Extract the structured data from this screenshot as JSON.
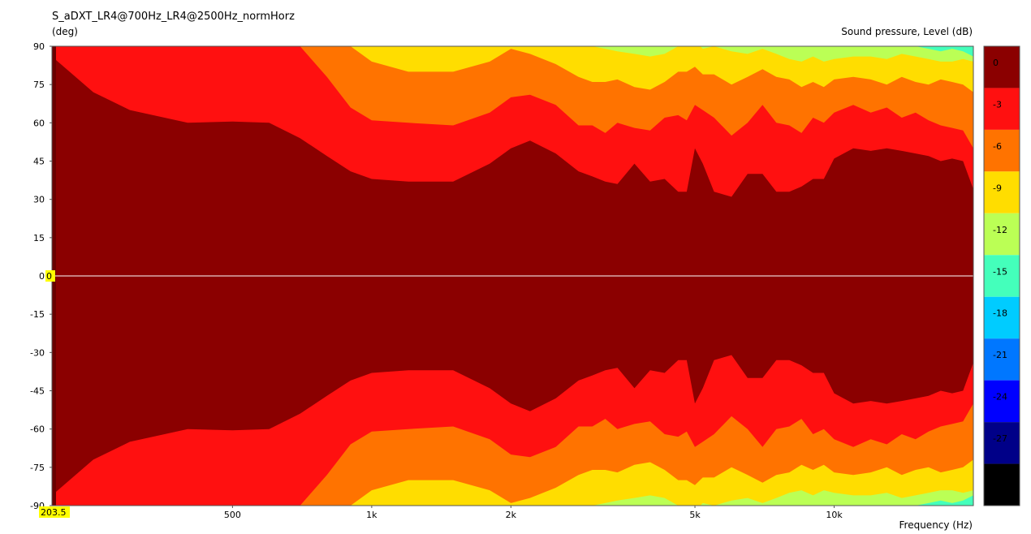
{
  "chart_data": {
    "type": "heatmap",
    "title": "S_aDXT_LR4@700Hz_LR4@2500Hz_normHorz",
    "ylabel": "(deg)",
    "xlabel": "Frequency  (Hz)",
    "colorbar_label": "Sound pressure, Level  (dB)",
    "x_scale": "log",
    "xlim": [
      203.5,
      20000
    ],
    "ylim": [
      -90,
      90
    ],
    "grid": false,
    "y_ticks": [
      90,
      75,
      60,
      45,
      30,
      15,
      0,
      -15,
      -30,
      -45,
      -60,
      -75,
      -90
    ],
    "x_ticks": [
      {
        "value": 500,
        "label": "500"
      },
      {
        "value": 1000,
        "label": "1k"
      },
      {
        "value": 2000,
        "label": "2k"
      },
      {
        "value": 5000,
        "label": "5k"
      },
      {
        "value": 10000,
        "label": "10k"
      }
    ],
    "cursor": {
      "x_label": "203.5",
      "y_label": "0"
    },
    "levels": [
      {
        "label": "0",
        "color": "#8b0000"
      },
      {
        "label": "-3",
        "color": "#ff1010"
      },
      {
        "label": "-6",
        "color": "#ff7300"
      },
      {
        "label": "-9",
        "color": "#ffdd00"
      },
      {
        "label": "-12",
        "color": "#bbff55"
      },
      {
        "label": "-15",
        "color": "#44ffbb"
      },
      {
        "label": "-18",
        "color": "#00ccff"
      },
      {
        "label": "-21",
        "color": "#0077ff"
      },
      {
        "label": "-24",
        "color": "#0000ff"
      },
      {
        "label": "-27",
        "color": "#000088"
      },
      {
        "label": "-30",
        "color": "#000000"
      }
    ],
    "contours": {
      "freqs": [
        203.5,
        250,
        300,
        400,
        500,
        600,
        700,
        800,
        900,
        1000,
        1200,
        1500,
        1800,
        2000,
        2200,
        2500,
        2800,
        3000,
        3200,
        3400,
        3700,
        4000,
        4300,
        4600,
        4800,
        5000,
        5200,
        5500,
        6000,
        6500,
        7000,
        7500,
        8000,
        8500,
        9000,
        9500,
        10000,
        11000,
        12000,
        13000,
        14000,
        15000,
        16000,
        17000,
        18000,
        19000,
        20000
      ],
      "-3": [
        86,
        72,
        65,
        60,
        60.5,
        60,
        54,
        47,
        41,
        38,
        37,
        37,
        44,
        50,
        53,
        48,
        41,
        39,
        37,
        36,
        44,
        37,
        38,
        33,
        33,
        50,
        44,
        33,
        31,
        40,
        40,
        33,
        33,
        35,
        38,
        38,
        46,
        50,
        49,
        50,
        49,
        48,
        47,
        45,
        46,
        45,
        34
      ],
      "-6": [
        95,
        95,
        95,
        95,
        95,
        95,
        90,
        78,
        66,
        61,
        60,
        59,
        64,
        70,
        71,
        67,
        59,
        59,
        56,
        60,
        58,
        57,
        62,
        63,
        61,
        67,
        65,
        62,
        55,
        60,
        67,
        60,
        59,
        56,
        62,
        60,
        64,
        67,
        64,
        66,
        62,
        64,
        61,
        59,
        58,
        57,
        50
      ],
      "-9": [
        95,
        95,
        95,
        95,
        95,
        95,
        95,
        95,
        90,
        84,
        80,
        80,
        84,
        89,
        87,
        83,
        78,
        76,
        76,
        77,
        74,
        73,
        76,
        80,
        80,
        82,
        79,
        79,
        75,
        78,
        81,
        78,
        77,
        74,
        76,
        74,
        77,
        78,
        77,
        75,
        78,
        76,
        75,
        77,
        76,
        75,
        72
      ],
      "-12": [
        95,
        95,
        95,
        95,
        95,
        95,
        95,
        95,
        95,
        95,
        95,
        95,
        95,
        95,
        95,
        95,
        93,
        90,
        89,
        88,
        87,
        86,
        87,
        90,
        91,
        92,
        89,
        90,
        88,
        87,
        89,
        87,
        85,
        84,
        86,
        84,
        85,
        86,
        86,
        85,
        87,
        86,
        85,
        84,
        84,
        85,
        84
      ],
      "-15": [
        95,
        95,
        95,
        95,
        95,
        95,
        95,
        95,
        95,
        95,
        95,
        95,
        95,
        95,
        95,
        95,
        95,
        95,
        95,
        95,
        95,
        95,
        95,
        95,
        95,
        95,
        95,
        95,
        95,
        95,
        95,
        95,
        95,
        95,
        95,
        95,
        95,
        95,
        95,
        95,
        92,
        90,
        89,
        88,
        89,
        88,
        86
      ]
    }
  }
}
